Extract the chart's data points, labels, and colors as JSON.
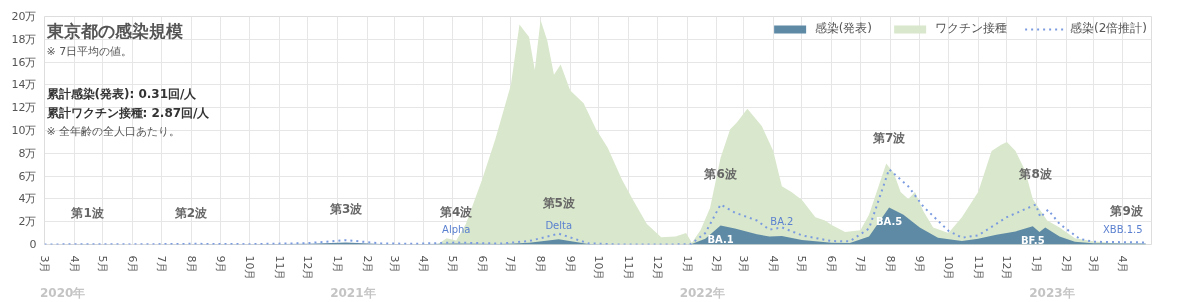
{
  "chart_data": {
    "type": "area",
    "title": "東京都の感染規模",
    "subtitle": "※ 7日平均の値。",
    "xlim": [
      "2020-03-01",
      "2023-05-01"
    ],
    "xticks": [
      {
        "value": "2020-03-01",
        "label": "3月"
      },
      {
        "value": "2020-04-01",
        "label": "4月"
      },
      {
        "value": "2020-05-01",
        "label": "5月"
      },
      {
        "value": "2020-06-01",
        "label": "6月"
      },
      {
        "value": "2020-07-01",
        "label": "7月"
      },
      {
        "value": "2020-08-01",
        "label": "8月"
      },
      {
        "value": "2020-09-01",
        "label": "9月"
      },
      {
        "value": "2020-10-01",
        "label": "10月"
      },
      {
        "value": "2020-11-01",
        "label": "11月"
      },
      {
        "value": "2020-12-01",
        "label": "12月"
      },
      {
        "value": "2021-01-01",
        "label": "1月"
      },
      {
        "value": "2021-02-01",
        "label": "2月"
      },
      {
        "value": "2021-03-01",
        "label": "3月"
      },
      {
        "value": "2021-04-01",
        "label": "4月"
      },
      {
        "value": "2021-05-01",
        "label": "5月"
      },
      {
        "value": "2021-06-01",
        "label": "6月"
      },
      {
        "value": "2021-07-01",
        "label": "7月"
      },
      {
        "value": "2021-08-01",
        "label": "8月"
      },
      {
        "value": "2021-09-01",
        "label": "9月"
      },
      {
        "value": "2021-10-01",
        "label": "10月"
      },
      {
        "value": "2021-11-01",
        "label": "11月"
      },
      {
        "value": "2021-12-01",
        "label": "12月"
      },
      {
        "value": "2022-01-01",
        "label": "1月"
      },
      {
        "value": "2022-02-01",
        "label": "2月"
      },
      {
        "value": "2022-03-01",
        "label": "3月"
      },
      {
        "value": "2022-04-01",
        "label": "4月"
      },
      {
        "value": "2022-05-01",
        "label": "5月"
      },
      {
        "value": "2022-06-01",
        "label": "6月"
      },
      {
        "value": "2022-07-01",
        "label": "7月"
      },
      {
        "value": "2022-08-01",
        "label": "8月"
      },
      {
        "value": "2022-09-01",
        "label": "9月"
      },
      {
        "value": "2022-10-01",
        "label": "10月"
      },
      {
        "value": "2022-11-01",
        "label": "11月"
      },
      {
        "value": "2022-12-01",
        "label": "12月"
      },
      {
        "value": "2023-01-01",
        "label": "1月"
      },
      {
        "value": "2023-02-01",
        "label": "2月"
      },
      {
        "value": "2023-03-01",
        "label": "3月"
      },
      {
        "value": "2023-04-01",
        "label": "4月"
      }
    ],
    "x2lim": [
      "2020-03-01",
      "2023-05-01"
    ],
    "x2ticks": [
      {
        "value": "2020-03-20",
        "label": "2020年"
      },
      {
        "value": "2021-01-17",
        "label": "2021年"
      },
      {
        "value": "2022-01-17",
        "label": "2022年"
      },
      {
        "value": "2023-01-17",
        "label": "2023年"
      }
    ],
    "ylim": [
      0,
      20
    ],
    "yticks": [
      0,
      {
        "value": 2,
        "label": "2万"
      },
      {
        "value": 4,
        "label": "4万"
      },
      {
        "value": 6,
        "label": "6万"
      },
      {
        "value": 8,
        "label": "8万"
      },
      {
        "value": 10,
        "label": "10万"
      },
      {
        "value": 12,
        "label": "12万"
      },
      {
        "value": 14,
        "label": "14万"
      },
      {
        "value": 16,
        "label": "16万"
      },
      {
        "value": 18,
        "label": "18万"
      },
      {
        "value": 20,
        "label": "20万"
      }
    ],
    "grid": true,
    "legend": "top right",
    "series": [
      {
        "name": "感染(発表)",
        "color": "#5f8aa6",
        "x": [
          "2020-03-01",
          "2020-04-15",
          "2020-06-01",
          "2020-08-01",
          "2020-10-01",
          "2020-12-01",
          "2021-01-10",
          "2021-02-15",
          "2021-03-20",
          "2021-05-05",
          "2021-06-20",
          "2021-07-20",
          "2021-08-20",
          "2021-09-20",
          "2021-10-20",
          "2021-12-20",
          "2022-01-05",
          "2022-01-20",
          "2022-02-05",
          "2022-02-20",
          "2022-03-15",
          "2022-03-28",
          "2022-04-10",
          "2022-05-01",
          "2022-06-01",
          "2022-06-20",
          "2022-07-10",
          "2022-07-31",
          "2022-08-15",
          "2022-09-01",
          "2022-09-20",
          "2022-10-15",
          "2022-11-01",
          "2022-11-20",
          "2022-12-10",
          "2022-12-28",
          "2023-01-04",
          "2023-01-10",
          "2023-01-25",
          "2023-02-10",
          "2023-03-01",
          "2023-04-01",
          "2023-04-25"
        ],
        "values": [
          0,
          0.02,
          0.01,
          0.03,
          0.02,
          0.06,
          0.18,
          0.05,
          0.03,
          0.09,
          0.04,
          0.15,
          0.47,
          0.05,
          0,
          0,
          0.02,
          0.5,
          1.67,
          1.4,
          0.9,
          0.7,
          0.75,
          0.4,
          0.15,
          0.14,
          0.7,
          3.25,
          2.6,
          1.5,
          0.6,
          0.3,
          0.5,
          0.85,
          1.15,
          1.6,
          1.1,
          1.5,
          0.7,
          0.25,
          0.12,
          0.08,
          0.09
        ]
      },
      {
        "name": "ワクチン接種",
        "color": "#d9e8cc",
        "x": [
          "2021-02-15",
          "2021-04-15",
          "2021-04-25",
          "2021-05-05",
          "2021-05-15",
          "2021-06-01",
          "2021-06-15",
          "2021-07-01",
          "2021-07-10",
          "2021-07-20",
          "2021-07-26",
          "2021-08-01",
          "2021-08-08",
          "2021-08-15",
          "2021-08-22",
          "2021-09-01",
          "2021-09-15",
          "2021-09-28",
          "2021-10-10",
          "2021-10-25",
          "2021-11-05",
          "2021-11-20",
          "2021-12-05",
          "2021-12-20",
          "2021-12-31",
          "2022-01-06",
          "2022-01-15",
          "2022-01-25",
          "2022-02-05",
          "2022-02-15",
          "2022-02-22",
          "2022-03-05",
          "2022-03-20",
          "2022-04-01",
          "2022-04-10",
          "2022-04-20",
          "2022-05-01",
          "2022-05-15",
          "2022-05-25",
          "2022-06-01",
          "2022-06-15",
          "2022-07-01",
          "2022-07-10",
          "2022-07-20",
          "2022-07-28",
          "2022-08-05",
          "2022-08-12",
          "2022-08-20",
          "2022-08-27",
          "2022-09-05",
          "2022-09-15",
          "2022-10-01",
          "2022-10-15",
          "2022-11-01",
          "2022-11-15",
          "2022-11-25",
          "2022-12-01",
          "2022-12-10",
          "2022-12-20",
          "2022-12-28",
          "2023-01-03",
          "2023-01-12",
          "2023-01-25",
          "2023-02-10",
          "2023-03-01",
          "2023-03-20",
          "2023-04-01",
          "2023-04-25"
        ],
        "values": [
          0,
          0,
          0.55,
          0.35,
          1.8,
          5.7,
          9.3,
          14,
          19.3,
          18.2,
          15.3,
          19.7,
          17.9,
          14.9,
          15.8,
          13.5,
          12.4,
          10.1,
          8.5,
          5.7,
          4,
          1.8,
          0.64,
          0.7,
          1,
          0.15,
          1.25,
          3.2,
          7.6,
          10.1,
          10.7,
          11.9,
          10.4,
          8.2,
          5.1,
          4.6,
          3.9,
          2.4,
          2.1,
          1.7,
          1.1,
          1.25,
          2.6,
          5.1,
          7.1,
          6.25,
          4.6,
          4,
          4.6,
          2.9,
          1.5,
          1,
          2.4,
          4.6,
          8.2,
          8.75,
          9,
          8.2,
          6.5,
          4,
          null,
          2.1,
          1.5,
          0.55,
          0.28,
          0.14,
          0.08,
          0.05
        ]
      },
      {
        "name": "感染(2倍推計)",
        "type": "line",
        "line_style": "dotted",
        "color": "#7b9be0",
        "x": [
          "2020-03-01",
          "2020-04-15",
          "2020-06-01",
          "2020-08-01",
          "2020-10-01",
          "2020-12-01",
          "2021-01-10",
          "2021-02-15",
          "2021-03-20",
          "2021-05-05",
          "2021-06-20",
          "2021-07-20",
          "2021-08-20",
          "2021-09-20",
          "2021-10-20",
          "2021-12-20",
          "2022-01-05",
          "2022-01-20",
          "2022-02-05",
          "2022-02-20",
          "2022-03-15",
          "2022-03-28",
          "2022-04-10",
          "2022-05-01",
          "2022-06-01",
          "2022-06-20",
          "2022-07-10",
          "2022-07-31",
          "2022-08-20",
          "2022-09-05",
          "2022-10-01",
          "2022-10-15",
          "2022-11-01",
          "2022-12-01",
          "2022-12-31",
          "2023-01-05",
          "2023-01-13",
          "2023-01-25",
          "2023-02-15",
          "2023-03-01",
          "2023-04-05",
          "2023-04-25"
        ],
        "values": [
          0,
          0.03,
          0.01,
          0.06,
          0.03,
          0.12,
          0.38,
          0.1,
          0.06,
          0.17,
          0.08,
          0.3,
          0.95,
          0.1,
          0.01,
          0.01,
          0.04,
          1,
          3.5,
          2.8,
          2.1,
          1.3,
          1.5,
          0.8,
          0.3,
          0.28,
          1.4,
          6.6,
          5.1,
          3.3,
          1.2,
          0.6,
          0.8,
          2.4,
          3.5,
          2.4,
          3.05,
          1.8,
          0.5,
          0.24,
          0.2,
          0.18
        ]
      }
    ],
    "annotations": [
      "累計感染(発表): 0.31回/人",
      "累計ワクチン接種: 2.87回/人",
      "※ 全年齢の全人口あたり。",
      {
        "text": "第1波",
        "x": "2020-04-15",
        "y": 0.03
      },
      {
        "text": "第2波",
        "x": "2020-08-01",
        "y": 0.06
      },
      {
        "text": "第3波",
        "x": "2021-01-10",
        "y": 0.38
      },
      {
        "text": "第4波",
        "x": "2021-05-05",
        "y": 0.17
      },
      {
        "text": "第5波",
        "x": "2021-08-20",
        "y": 0.95
      },
      {
        "text": "第6波",
        "x": "2022-02-05",
        "y": 3.5
      },
      {
        "text": "第7波",
        "x": "2022-07-31",
        "y": 6.6
      },
      {
        "text": "第8波",
        "x": "2022-12-31",
        "y": 3.5
      },
      {
        "text": "第9波",
        "x": "2023-04-05",
        "y": 0.2
      },
      {
        "text": "Alpha",
        "x": "2021-05-05",
        "y": 0.09
      },
      {
        "text": "Delta",
        "x": "2021-08-20",
        "y": 0.47
      },
      {
        "text": "BA.1",
        "x": "2022-02-05",
        "y": 1.67
      },
      {
        "text": "BA.2",
        "x": "2022-04-10",
        "y": 0.75
      },
      {
        "text": "BA.5",
        "x": "2022-07-31",
        "y": 3.25
      },
      {
        "text": "BF.5",
        "x": "2022-12-28",
        "y": 1.6
      },
      {
        "text": "XBB.1.5",
        "x": "2023-04-01",
        "y": 0.08
      }
    ]
  }
}
